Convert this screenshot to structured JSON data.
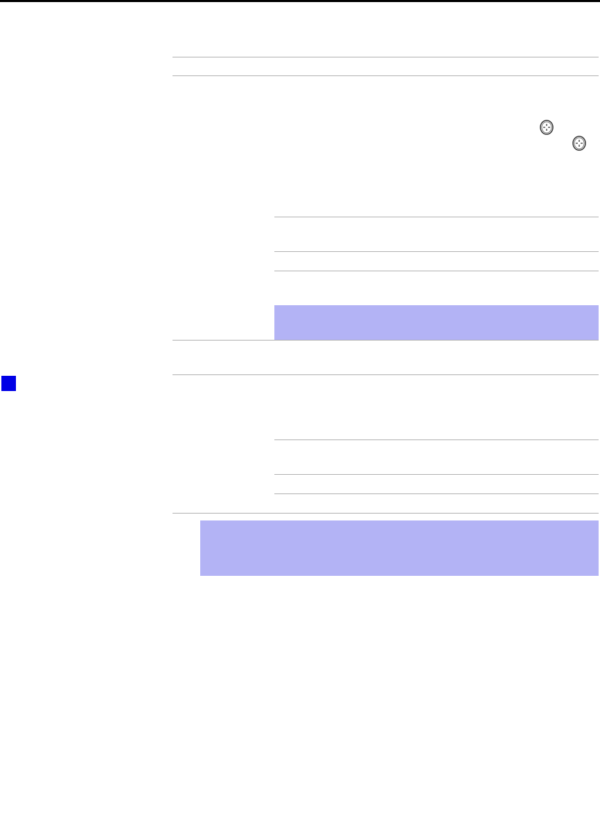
{
  "page": {
    "colors": {
      "rule": "#b0b0b0",
      "highlight": "#b3b3f5",
      "marker": "#0000e6",
      "top_bar": "#000000"
    },
    "icons": [
      "crosshair-button-icon",
      "crosshair-button-icon"
    ]
  }
}
